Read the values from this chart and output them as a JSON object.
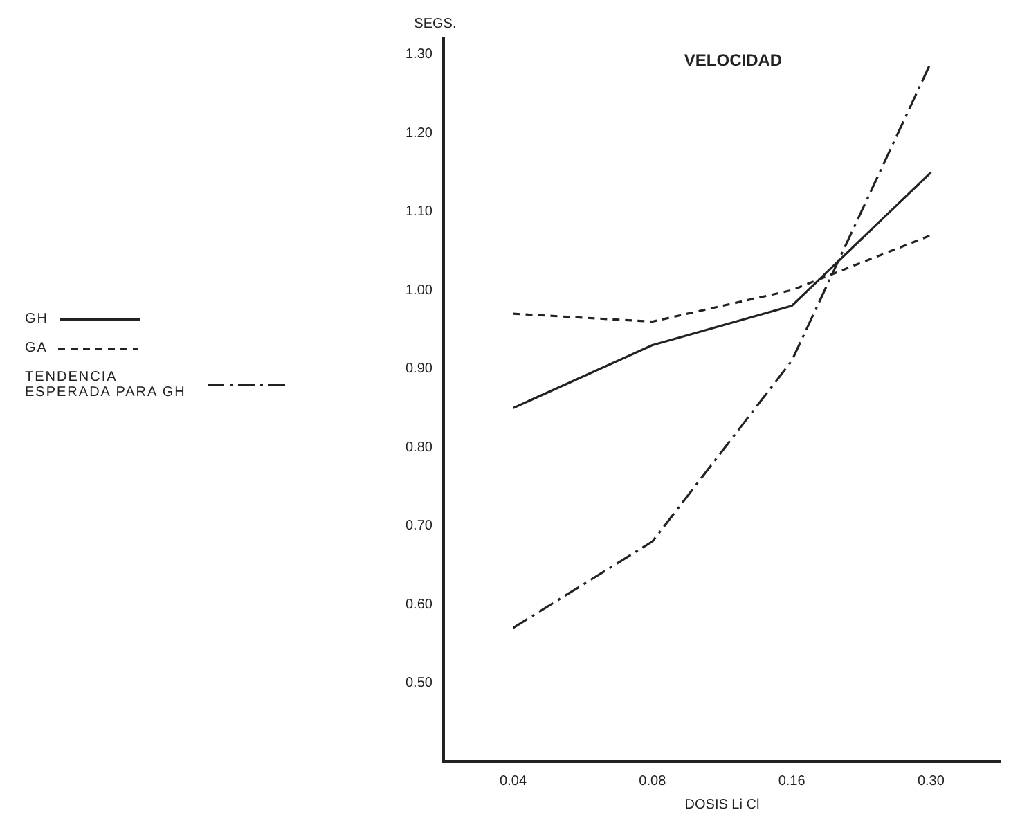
{
  "chart_data": {
    "type": "line",
    "title": "VELOCIDAD",
    "xlabel": "DOSIS Li Cl",
    "ylabel": "SEGS.",
    "categories": [
      "0.04",
      "0.08",
      "0.16",
      "0.30"
    ],
    "series": [
      {
        "name": "GH",
        "color": "#222222",
        "values": [
          0.85,
          0.93,
          0.98,
          1.15
        ],
        "line_style": "solid"
      },
      {
        "name": "GA",
        "color": "#222222",
        "values": [
          0.97,
          0.96,
          1.0,
          1.07
        ],
        "line_style": "dashed"
      },
      {
        "name": "TENDENCIA ESPERADA PARA GH",
        "color": "#222222",
        "values": [
          0.57,
          0.68,
          0.91,
          1.29
        ],
        "line_style": "dashdot"
      }
    ],
    "ylim": [
      0.4,
      1.32
    ],
    "yticks": [
      {
        "value": 0.5,
        "label": "0.50"
      },
      {
        "value": 0.6,
        "label": "0.60"
      },
      {
        "value": 0.7,
        "label": "0.70"
      },
      {
        "value": 0.8,
        "label": "0.80"
      },
      {
        "value": 0.9,
        "label": "0.90"
      },
      {
        "value": 1.0,
        "label": "1.00"
      },
      {
        "value": 1.1,
        "label": "1.10"
      },
      {
        "value": 1.2,
        "label": "1.20"
      },
      {
        "value": 1.3,
        "label": "1.30"
      }
    ],
    "grid": false,
    "legend": "left",
    "marker": "none"
  }
}
